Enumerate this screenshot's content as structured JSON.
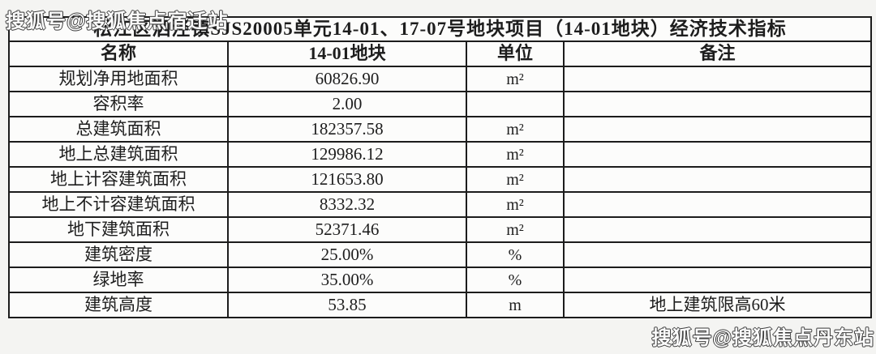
{
  "watermarks": {
    "top": "搜狐号@搜狐焦点宿迁站",
    "bottom": "搜狐号@搜狐焦点丹东站"
  },
  "table": {
    "title": "松江区泗泾镇SJS20005单元14-01、17-07号地块项目（14-01地块）经济技术指标",
    "headers": [
      "名称",
      "14-01地块",
      "单位",
      "备注"
    ],
    "rows": [
      [
        "规划净用地面积",
        "60826.90",
        "m²",
        ""
      ],
      [
        "容积率",
        "2.00",
        "",
        ""
      ],
      [
        "总建筑面积",
        "182357.58",
        "m²",
        ""
      ],
      [
        "地上总建筑面积",
        "129986.12",
        "m²",
        ""
      ],
      [
        "地上计容建筑面积",
        "121653.80",
        "m²",
        ""
      ],
      [
        "地上不计容建筑面积",
        "8332.32",
        "m²",
        ""
      ],
      [
        "地下建筑面积",
        "52371.46",
        "m²",
        ""
      ],
      [
        "建筑密度",
        "25.00%",
        "%",
        ""
      ],
      [
        "绿地率",
        "35.00%",
        "%",
        ""
      ],
      [
        "建筑高度",
        "53.85",
        "m",
        "地上建筑限高60米"
      ]
    ]
  },
  "colors": {
    "border": "#1c1c1c",
    "cell_background": "#fcfcfb",
    "page_background": "#f4f4f2",
    "text": "#1d1d1d"
  }
}
